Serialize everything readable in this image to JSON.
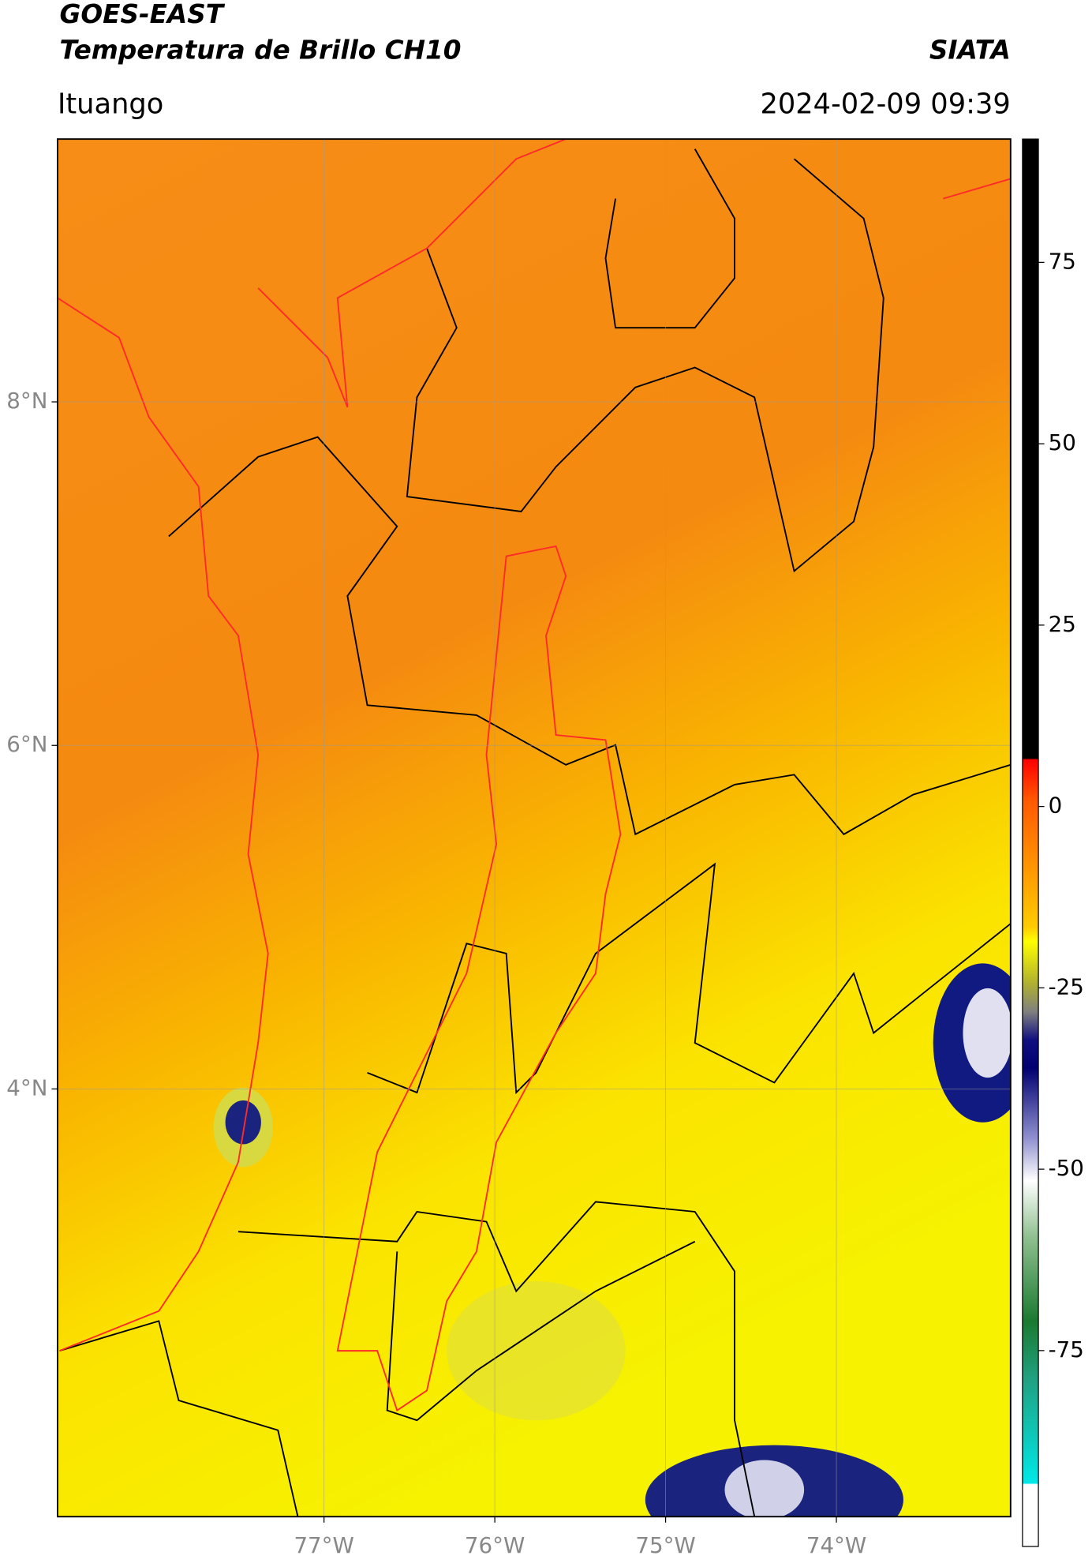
{
  "header": {
    "title": "GOES-EAST",
    "subtitle": "Temperatura de Brillo CH10",
    "source": "SIATA",
    "place": "Ituango",
    "datetime": "2024-02-09 09:39"
  },
  "map": {
    "xlim": [
      -78.56,
      -72.98
    ],
    "ylim": [
      1.51,
      9.53
    ],
    "xticks": [
      {
        "value": -77,
        "label": "77°W"
      },
      {
        "value": -76,
        "label": "76°W"
      },
      {
        "value": -75,
        "label": "75°W"
      },
      {
        "value": -74,
        "label": "74°W"
      }
    ],
    "yticks": [
      {
        "value": 8,
        "label": "8°N"
      },
      {
        "value": 6,
        "label": "6°N"
      },
      {
        "value": 4,
        "label": "4°N"
      }
    ]
  },
  "colorbar": {
    "lim": [
      -102,
      92
    ],
    "ticks": [
      75,
      50,
      25,
      0,
      -25,
      -50,
      -75
    ]
  }
}
